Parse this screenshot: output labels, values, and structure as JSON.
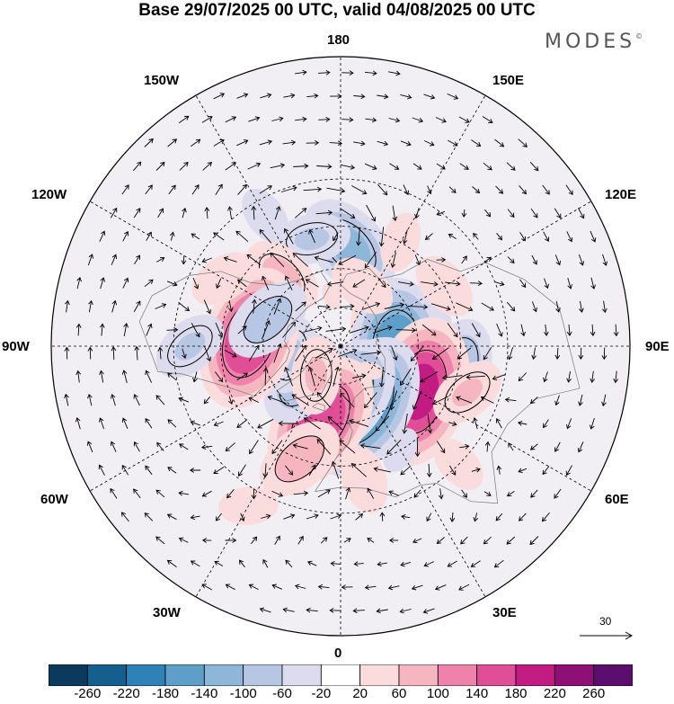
{
  "title": "Base 29/07/2025 00 UTC, valid 04/08/2025 00 UTC",
  "logo": "MODES",
  "logo_mark": "©",
  "longitude_labels": {
    "top": "180",
    "bottom": "0",
    "left": "90W",
    "right": "90E",
    "upper_left": "150W",
    "upper_right": "150E",
    "mid_upper_left": "120W",
    "mid_upper_right": "120E",
    "mid_lower_left": "60W",
    "mid_lower_right": "60E",
    "lower_left": "30W",
    "lower_right": "30E"
  },
  "reference_vector": "30",
  "colorbar": {
    "ticks": [
      "-260",
      "-220",
      "-180",
      "-140",
      "-100",
      "-60",
      "-20",
      "20",
      "60",
      "100",
      "140",
      "180",
      "220",
      "260"
    ],
    "colors": [
      "#0b3a5c",
      "#155f8f",
      "#2e82b8",
      "#5d9fc9",
      "#8eb6d8",
      "#b7c6e3",
      "#dcdcee",
      "#ffffff",
      "#fbdcdc",
      "#f6b6bf",
      "#ef82aa",
      "#e04e98",
      "#c21c82",
      "#8e0f75",
      "#5c0e6e"
    ]
  },
  "anomalies": [
    {
      "lon": 175,
      "lat": 52,
      "value": -110
    },
    {
      "lon": -165,
      "lat": 48,
      "value": -60
    },
    {
      "lon": -140,
      "lat": 55,
      "value": 70
    },
    {
      "lon": -150,
      "lat": 35,
      "value": -40
    },
    {
      "lon": 150,
      "lat": 45,
      "value": 40
    },
    {
      "lon": 135,
      "lat": 72,
      "value": 45
    },
    {
      "lon": 100,
      "lat": 55,
      "value": -50
    },
    {
      "lon": 85,
      "lat": 68,
      "value": -170
    },
    {
      "lon": 80,
      "lat": 45,
      "value": -90
    },
    {
      "lon": 60,
      "lat": 55,
      "value": 180
    },
    {
      "lon": 70,
      "lat": 40,
      "value": 60
    },
    {
      "lon": 120,
      "lat": 45,
      "value": 50
    },
    {
      "lon": 20,
      "lat": 65,
      "value": -180
    },
    {
      "lon": 5,
      "lat": 70,
      "value": -140
    },
    {
      "lon": -15,
      "lat": 60,
      "value": 160
    },
    {
      "lon": -20,
      "lat": 45,
      "value": 80
    },
    {
      "lon": -50,
      "lat": 70,
      "value": -90
    },
    {
      "lon": -80,
      "lat": 70,
      "value": -60
    },
    {
      "lon": -95,
      "lat": 55,
      "value": 170
    },
    {
      "lon": -90,
      "lat": 35,
      "value": -60
    },
    {
      "lon": -110,
      "lat": 60,
      "value": -80
    },
    {
      "lon": -120,
      "lat": 40,
      "value": 50
    },
    {
      "lon": -40,
      "lat": 75,
      "value": 60
    },
    {
      "lon": 45,
      "lat": 30,
      "value": 40
    },
    {
      "lon": 160,
      "lat": 65,
      "value": 50
    },
    {
      "lon": -30,
      "lat": 25,
      "value": 40
    },
    {
      "lon": 10,
      "lat": 40,
      "value": 50
    },
    {
      "lon": 30,
      "lat": 45,
      "value": -30
    },
    {
      "lon": -170,
      "lat": 70,
      "value": 20
    },
    {
      "lon": 50,
      "lat": 75,
      "value": 20
    }
  ]
}
